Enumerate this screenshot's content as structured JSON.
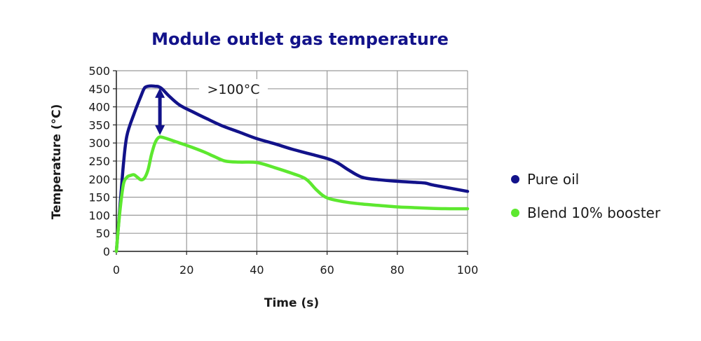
{
  "chart_data": {
    "type": "line",
    "title": "Module outlet gas temperature",
    "xlabel": "Time (s)",
    "ylabel": "Temperature (°C)",
    "xlim": [
      0,
      100
    ],
    "ylim": [
      0,
      500
    ],
    "xticks": [
      0,
      20,
      40,
      60,
      80,
      100
    ],
    "yticks": [
      0,
      50,
      100,
      150,
      200,
      250,
      300,
      350,
      400,
      450,
      500
    ],
    "grid": true,
    "legend_position": "right",
    "annotation": ">100°C",
    "colors": {
      "title": "#12128a",
      "arrow": "#12128a",
      "grid": "#9a9a9a"
    },
    "series": [
      {
        "name": "Pure oil",
        "color": "#12128a",
        "points": [
          [
            0,
            0
          ],
          [
            1,
            120
          ],
          [
            2,
            240
          ],
          [
            3,
            320
          ],
          [
            5,
            380
          ],
          [
            7,
            430
          ],
          [
            8,
            452
          ],
          [
            9,
            457
          ],
          [
            10,
            458
          ],
          [
            11,
            457
          ],
          [
            12,
            456
          ],
          [
            13,
            450
          ],
          [
            15,
            430
          ],
          [
            18,
            405
          ],
          [
            22,
            385
          ],
          [
            26,
            366
          ],
          [
            30,
            348
          ],
          [
            35,
            330
          ],
          [
            40,
            312
          ],
          [
            45,
            298
          ],
          [
            50,
            283
          ],
          [
            55,
            270
          ],
          [
            60,
            257
          ],
          [
            63,
            245
          ],
          [
            66,
            226
          ],
          [
            70,
            205
          ],
          [
            75,
            198
          ],
          [
            80,
            194
          ],
          [
            85,
            191
          ],
          [
            88,
            189
          ],
          [
            90,
            184
          ],
          [
            95,
            175
          ],
          [
            100,
            166
          ]
        ]
      },
      {
        "name": "Blend 10% booster",
        "color": "#5de82f",
        "points": [
          [
            0,
            0
          ],
          [
            1,
            110
          ],
          [
            2,
            185
          ],
          [
            3,
            205
          ],
          [
            4,
            210
          ],
          [
            5,
            212
          ],
          [
            6,
            205
          ],
          [
            7,
            198
          ],
          [
            8,
            203
          ],
          [
            9,
            225
          ],
          [
            10,
            268
          ],
          [
            11,
            300
          ],
          [
            12,
            315
          ],
          [
            13,
            316
          ],
          [
            15,
            310
          ],
          [
            18,
            300
          ],
          [
            21,
            290
          ],
          [
            25,
            275
          ],
          [
            28,
            262
          ],
          [
            31,
            250
          ],
          [
            35,
            247
          ],
          [
            40,
            246
          ],
          [
            45,
            232
          ],
          [
            50,
            216
          ],
          [
            54,
            200
          ],
          [
            57,
            170
          ],
          [
            60,
            148
          ],
          [
            65,
            137
          ],
          [
            70,
            131
          ],
          [
            75,
            127
          ],
          [
            80,
            123
          ],
          [
            85,
            121
          ],
          [
            90,
            119
          ],
          [
            95,
            118
          ],
          [
            100,
            118
          ]
        ]
      }
    ],
    "arrow": {
      "x": 12.4,
      "y_top": 452,
      "y_bottom": 322
    }
  }
}
